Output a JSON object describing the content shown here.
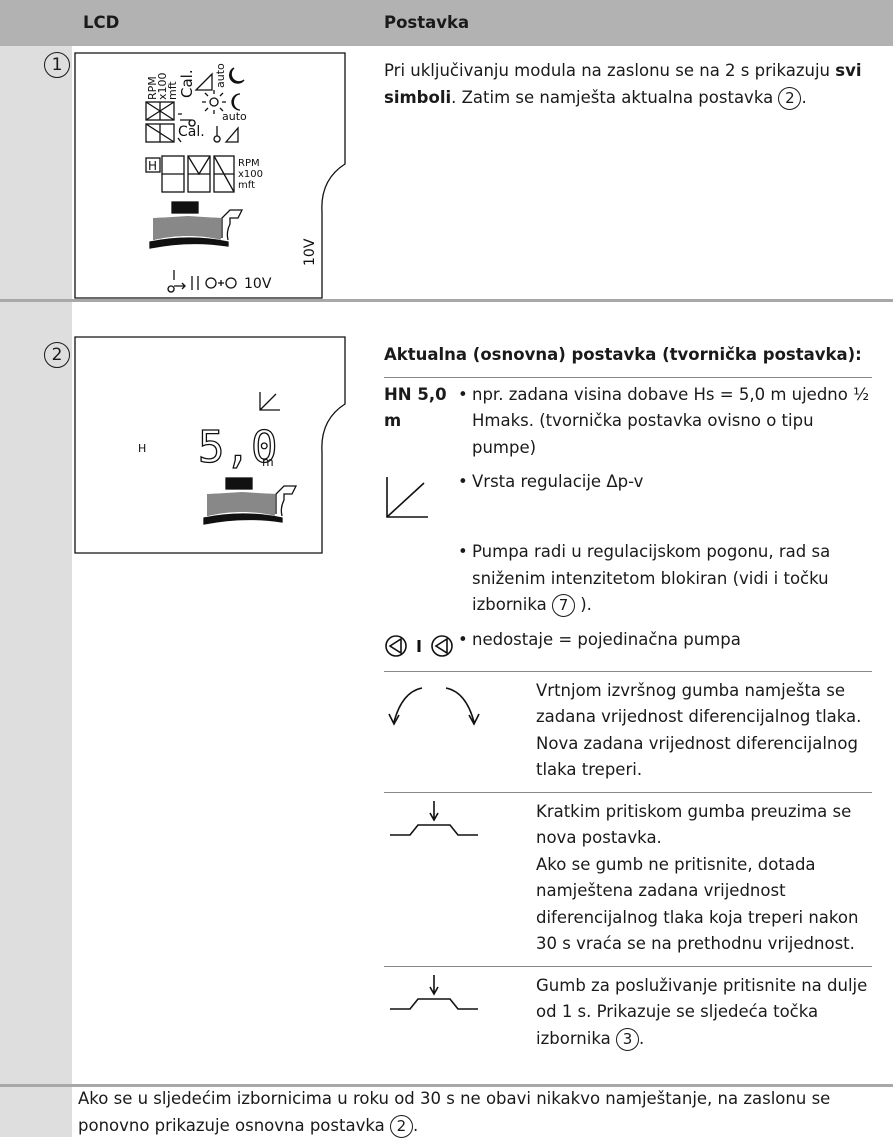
{
  "header": {
    "lcd": "LCD",
    "setting": "Postavka"
  },
  "rows": [
    {
      "number": "1",
      "lcd": {
        "labels": [
          "RPM",
          "x100",
          "mft",
          "Cal.",
          "auto",
          "auto",
          "Cal.",
          "H",
          "RPM",
          "x100",
          "mft",
          "10V",
          "10V"
        ]
      },
      "text": {
        "start": "Pri uključivanju modula na zaslonu se na 2 s prikazuju ",
        "bold": "svi simboli",
        "end": ". Zatim se namješta aktualna postavka ",
        "ref": "2",
        "tail": "."
      }
    },
    {
      "number": "2",
      "lcd": {
        "h": "H",
        "value": "5,0",
        "unit": "m"
      },
      "heading": "Aktualna (osnovna) postavka (tvornička postavka):",
      "items": [
        {
          "label": "HN 5,0 m",
          "text": "npr. zadana visina dobave Hs = 5,0 m ujedno ½ Hmaks. (tvornička postavka ovisno o tipu pumpe)"
        },
        {
          "text": "Vrsta regulacije Δp-v"
        },
        {
          "text": "Pumpa radi u regulacijskom pogonu, rad sa sniženim intenzitetom blokiran (vidi i točku izbornika ",
          "ref": "7",
          "tail": " )."
        },
        {
          "text": "nedostaje = pojedinačna pumpa"
        },
        {
          "text": "Vrtnjom izvršnog gumba namješta se zadana vrijednost diferencijalnog tlaka. Nova zadana vrijednost diferencijalnog tlaka treperi."
        },
        {
          "paragraphs": [
            "Kratkim pritiskom gumba preuzima se nova postavka.",
            "Ako se gumb ne pritisnite, dotada namještena zadana vrijednost diferencijalnog tlaka koja treperi nakon 30 s vraća se na prethodnu vrijednost."
          ]
        },
        {
          "text": "Gumb za posluživanje pritisnite na dulje od 1 s. Prikazuje se sljedeća točka izbornika ",
          "ref": "3",
          "tail": "."
        }
      ]
    }
  ],
  "note": {
    "text": "Ako se u sljedećim izbornicima u roku od 30 s ne obavi nikakvo namještanje, na zaslonu se ponovno prikazuje osnovna postavka ",
    "ref": "2",
    "tail": "."
  }
}
